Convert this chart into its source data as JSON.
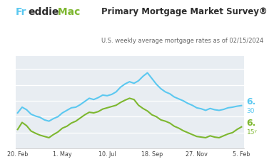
{
  "title": "Primary Mortgage Market Survey®",
  "subtitle": "U.S. weekly average mortgage rates as of 02/15/2024",
  "plot_bg": "#e8edf2",
  "line1_color": "#5bc8f0",
  "line2_color": "#7db72f",
  "label1_color": "#5bc8f0",
  "label2_color": "#7db72f",
  "label1_top": "6.",
  "label1_bot": "30",
  "label2_top": "6.",
  "label2_bot": "15ʸ",
  "xtick_labels": [
    "20. Feb",
    "1. May",
    "10. Jul",
    "18. Sep",
    "27. Nov",
    "5. Feb"
  ],
  "xtick_positions": [
    0,
    10,
    20,
    30,
    40,
    50
  ],
  "ylim": [
    5.5,
    8.4
  ],
  "line1_y": [
    6.62,
    6.8,
    6.72,
    6.58,
    6.52,
    6.48,
    6.4,
    6.36,
    6.44,
    6.5,
    6.62,
    6.7,
    6.78,
    6.8,
    6.88,
    6.98,
    7.08,
    7.04,
    7.1,
    7.18,
    7.16,
    7.2,
    7.28,
    7.43,
    7.53,
    7.6,
    7.55,
    7.63,
    7.77,
    7.88,
    7.7,
    7.52,
    7.38,
    7.28,
    7.22,
    7.12,
    7.06,
    7.0,
    6.92,
    6.86,
    6.78,
    6.75,
    6.7,
    6.76,
    6.72,
    6.7,
    6.73,
    6.78,
    6.8,
    6.83,
    6.85
  ],
  "line2_y": [
    6.1,
    6.32,
    6.22,
    6.05,
    5.98,
    5.92,
    5.88,
    5.84,
    5.94,
    6.02,
    6.14,
    6.2,
    6.3,
    6.36,
    6.46,
    6.56,
    6.64,
    6.62,
    6.66,
    6.74,
    6.78,
    6.82,
    6.86,
    6.95,
    7.02,
    7.08,
    7.04,
    6.86,
    6.76,
    6.68,
    6.56,
    6.5,
    6.4,
    6.36,
    6.3,
    6.2,
    6.14,
    6.06,
    6.0,
    5.94,
    5.88,
    5.86,
    5.84,
    5.9,
    5.86,
    5.84,
    5.9,
    5.96,
    6.0,
    6.1,
    6.18
  ],
  "freddie_f_color": "#5bc8f0",
  "freddie_rest_color": "#2d2d2d",
  "freddie_mac_color": "#7db72f",
  "title_color": "#2d2d2d",
  "subtitle_color": "#666666",
  "grid_color": "#ffffff",
  "spine_color": "#cccccc"
}
